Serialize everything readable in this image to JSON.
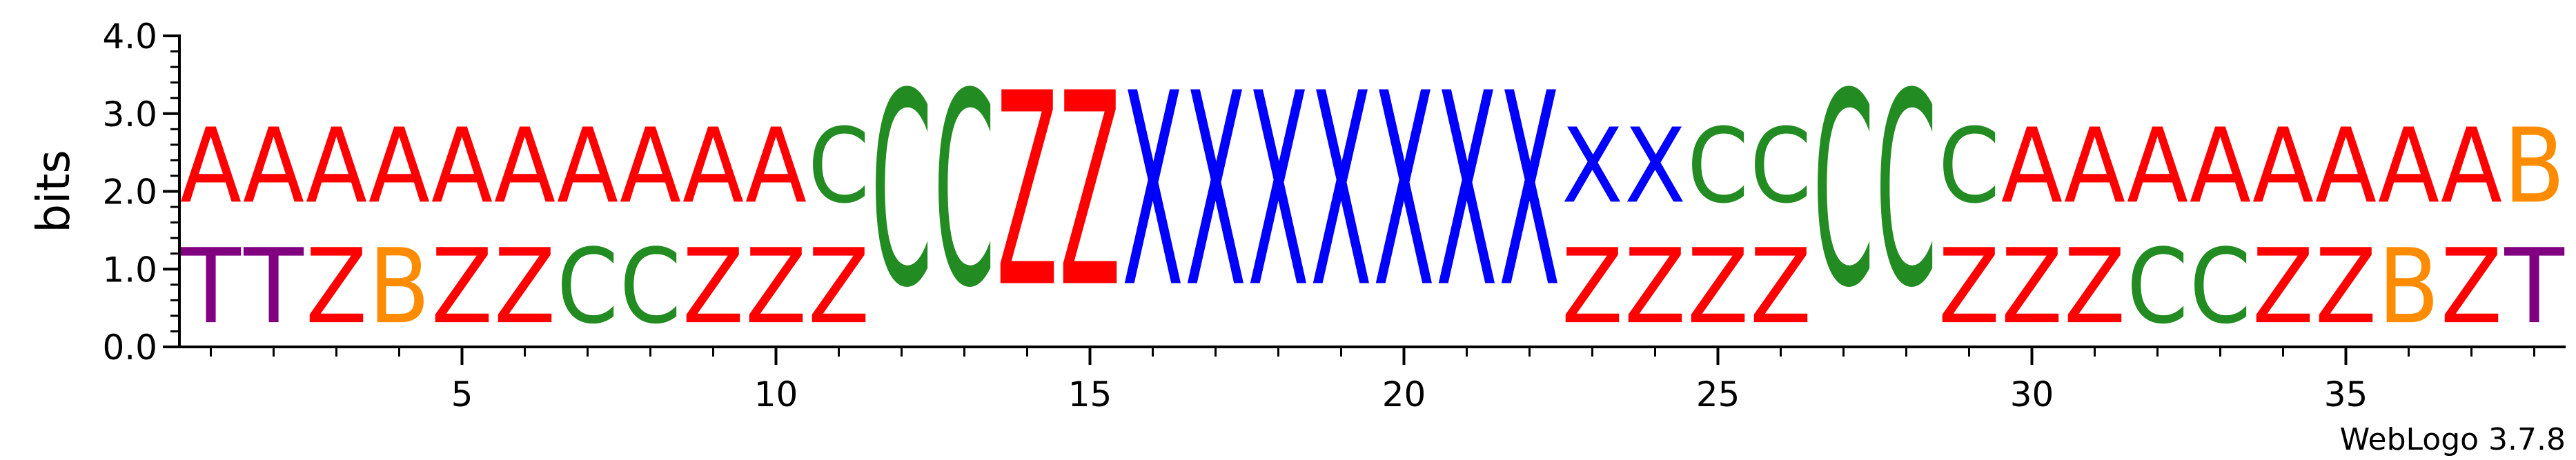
{
  "chart_data": {
    "type": "sequence-logo",
    "ylabel": "bits",
    "ylim": [
      0,
      4
    ],
    "yticks": [
      "0.0",
      "1.0",
      "2.0",
      "3.0",
      "4.0"
    ],
    "xticks": [
      "5",
      "10",
      "15",
      "20",
      "25",
      "30",
      "35"
    ],
    "footer": "WebLogo 3.7.8",
    "colors": {
      "A": "#ff0000",
      "Z": "#ff0000",
      "T": "#800080",
      "B": "#ff8c00",
      "C": "#228b22",
      "X": "#0000ff"
    },
    "positions": [
      {
        "pos": 1,
        "stack": [
          {
            "letter": "T",
            "bits": 1.55
          },
          {
            "letter": "A",
            "bits": 1.55
          }
        ]
      },
      {
        "pos": 2,
        "stack": [
          {
            "letter": "T",
            "bits": 1.55
          },
          {
            "letter": "A",
            "bits": 1.55
          }
        ]
      },
      {
        "pos": 3,
        "stack": [
          {
            "letter": "Z",
            "bits": 1.55
          },
          {
            "letter": "A",
            "bits": 1.55
          }
        ]
      },
      {
        "pos": 4,
        "stack": [
          {
            "letter": "B",
            "bits": 1.55
          },
          {
            "letter": "A",
            "bits": 1.55
          }
        ]
      },
      {
        "pos": 5,
        "stack": [
          {
            "letter": "Z",
            "bits": 1.55
          },
          {
            "letter": "A",
            "bits": 1.55
          }
        ]
      },
      {
        "pos": 6,
        "stack": [
          {
            "letter": "Z",
            "bits": 1.55
          },
          {
            "letter": "A",
            "bits": 1.55
          }
        ]
      },
      {
        "pos": 7,
        "stack": [
          {
            "letter": "C",
            "bits": 1.55
          },
          {
            "letter": "A",
            "bits": 1.55
          }
        ]
      },
      {
        "pos": 8,
        "stack": [
          {
            "letter": "C",
            "bits": 1.55
          },
          {
            "letter": "A",
            "bits": 1.55
          }
        ]
      },
      {
        "pos": 9,
        "stack": [
          {
            "letter": "Z",
            "bits": 1.55
          },
          {
            "letter": "A",
            "bits": 1.55
          }
        ]
      },
      {
        "pos": 10,
        "stack": [
          {
            "letter": "Z",
            "bits": 1.55
          },
          {
            "letter": "A",
            "bits": 1.55
          }
        ]
      },
      {
        "pos": 11,
        "stack": [
          {
            "letter": "Z",
            "bits": 1.55
          },
          {
            "letter": "C",
            "bits": 1.55
          }
        ]
      },
      {
        "pos": 12,
        "stack": [
          {
            "letter": "C",
            "bits": 4.0
          }
        ]
      },
      {
        "pos": 13,
        "stack": [
          {
            "letter": "C",
            "bits": 4.0
          }
        ]
      },
      {
        "pos": 14,
        "stack": [
          {
            "letter": "Z",
            "bits": 4.0
          }
        ]
      },
      {
        "pos": 15,
        "stack": [
          {
            "letter": "Z",
            "bits": 4.0
          }
        ]
      },
      {
        "pos": 16,
        "stack": [
          {
            "letter": "X",
            "bits": 4.0
          }
        ]
      },
      {
        "pos": 17,
        "stack": [
          {
            "letter": "X",
            "bits": 4.0
          }
        ]
      },
      {
        "pos": 18,
        "stack": [
          {
            "letter": "X",
            "bits": 4.0
          }
        ]
      },
      {
        "pos": 19,
        "stack": [
          {
            "letter": "X",
            "bits": 4.0
          }
        ]
      },
      {
        "pos": 20,
        "stack": [
          {
            "letter": "X",
            "bits": 4.0
          }
        ]
      },
      {
        "pos": 21,
        "stack": [
          {
            "letter": "X",
            "bits": 4.0
          }
        ]
      },
      {
        "pos": 22,
        "stack": [
          {
            "letter": "X",
            "bits": 4.0
          }
        ]
      },
      {
        "pos": 23,
        "stack": [
          {
            "letter": "Z",
            "bits": 1.55
          },
          {
            "letter": "X",
            "bits": 1.55
          }
        ]
      },
      {
        "pos": 24,
        "stack": [
          {
            "letter": "Z",
            "bits": 1.55
          },
          {
            "letter": "X",
            "bits": 1.55
          }
        ]
      },
      {
        "pos": 25,
        "stack": [
          {
            "letter": "Z",
            "bits": 1.55
          },
          {
            "letter": "C",
            "bits": 1.55
          }
        ]
      },
      {
        "pos": 26,
        "stack": [
          {
            "letter": "Z",
            "bits": 1.55
          },
          {
            "letter": "C",
            "bits": 1.55
          }
        ]
      },
      {
        "pos": 27,
        "stack": [
          {
            "letter": "C",
            "bits": 4.0
          }
        ]
      },
      {
        "pos": 28,
        "stack": [
          {
            "letter": "C",
            "bits": 4.0
          }
        ]
      },
      {
        "pos": 29,
        "stack": [
          {
            "letter": "Z",
            "bits": 1.55
          },
          {
            "letter": "C",
            "bits": 1.55
          }
        ]
      },
      {
        "pos": 30,
        "stack": [
          {
            "letter": "Z",
            "bits": 1.55
          },
          {
            "letter": "A",
            "bits": 1.55
          }
        ]
      },
      {
        "pos": 31,
        "stack": [
          {
            "letter": "Z",
            "bits": 1.55
          },
          {
            "letter": "A",
            "bits": 1.55
          }
        ]
      },
      {
        "pos": 32,
        "stack": [
          {
            "letter": "C",
            "bits": 1.55
          },
          {
            "letter": "A",
            "bits": 1.55
          }
        ]
      },
      {
        "pos": 33,
        "stack": [
          {
            "letter": "C",
            "bits": 1.55
          },
          {
            "letter": "A",
            "bits": 1.55
          }
        ]
      },
      {
        "pos": 34,
        "stack": [
          {
            "letter": "Z",
            "bits": 1.55
          },
          {
            "letter": "A",
            "bits": 1.55
          }
        ]
      },
      {
        "pos": 35,
        "stack": [
          {
            "letter": "Z",
            "bits": 1.55
          },
          {
            "letter": "A",
            "bits": 1.55
          }
        ]
      },
      {
        "pos": 36,
        "stack": [
          {
            "letter": "B",
            "bits": 1.55
          },
          {
            "letter": "A",
            "bits": 1.55
          }
        ]
      },
      {
        "pos": 37,
        "stack": [
          {
            "letter": "Z",
            "bits": 1.55
          },
          {
            "letter": "A",
            "bits": 1.55
          }
        ]
      },
      {
        "pos": 38,
        "stack": [
          {
            "letter": "T",
            "bits": 1.55
          },
          {
            "letter": "B",
            "bits": 1.55
          }
        ]
      }
    ]
  }
}
